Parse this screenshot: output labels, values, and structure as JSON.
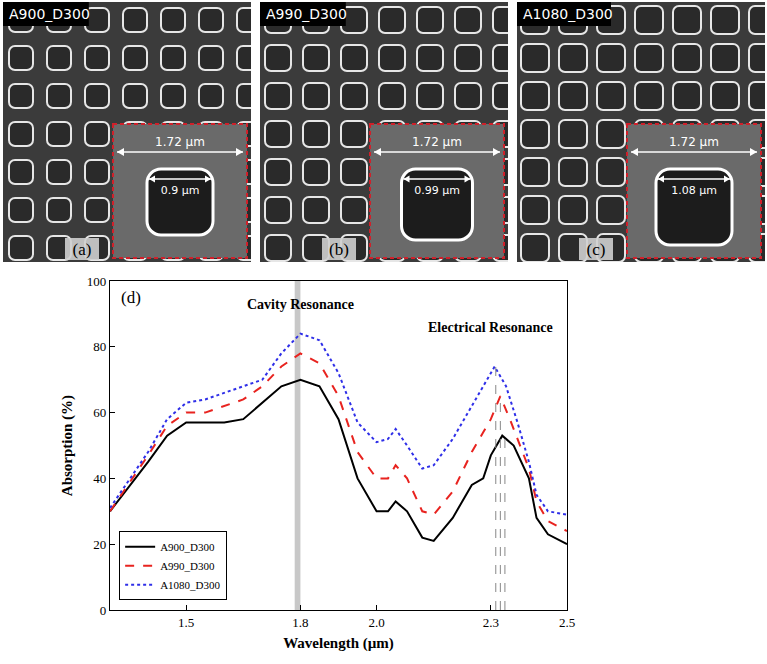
{
  "panels": [
    {
      "letter": "(a)",
      "label": "A900_D300",
      "period": "1.72 µm",
      "size": "0.9 µm"
    },
    {
      "letter": "(b)",
      "label": "A990_D300",
      "period": "1.72 µm",
      "size": "0.99 µm"
    },
    {
      "letter": "(c)",
      "label": "A1080_D300",
      "period": "1.72 µm",
      "size": "1.08 µm"
    }
  ],
  "chart_data": {
    "type": "line",
    "panel_letter": "(d)",
    "x_label": "Wavelength (µm)",
    "y_label": "Absorption (%)",
    "xlim": [
      1.3,
      2.5
    ],
    "xticks": [
      1.5,
      1.8,
      {
        "value": 2,
        "label": "2.0"
      },
      2.3,
      2.5
    ],
    "ylim": [
      0,
      100
    ],
    "yticks": [
      0,
      20,
      40,
      60,
      80,
      100
    ],
    "grid": false,
    "legend": "lower left",
    "annotations": [
      {
        "text": "Cavity Resonance",
        "x": 1.8,
        "y": 93
      },
      {
        "text": "Electrical Resonance",
        "x": 2.3,
        "y": 86
      }
    ],
    "band": {
      "x": [
        1.785,
        1.8
      ]
    },
    "peak_lines": [
      {
        "x": 2.313,
        "y": 74
      },
      {
        "x": 2.325,
        "y": 65
      },
      {
        "x": 2.337,
        "y": 53
      }
    ],
    "series": [
      {
        "name": "A900_D300",
        "color": "#000000",
        "line_style": "solid",
        "x": [
          1.3,
          1.4,
          1.45,
          1.5,
          1.55,
          1.6,
          1.65,
          1.7,
          1.75,
          1.8,
          1.85,
          1.9,
          1.95,
          2.0,
          2.03,
          2.05,
          2.08,
          2.12,
          2.15,
          2.2,
          2.25,
          2.28,
          2.3,
          2.33,
          2.36,
          2.4,
          2.42,
          2.45,
          2.5
        ],
        "values": [
          30,
          45,
          53,
          57,
          57,
          57,
          58,
          63,
          68,
          70,
          68,
          58,
          40,
          30,
          30,
          33,
          30,
          22,
          21,
          28,
          38,
          40,
          47,
          53,
          50,
          40,
          28,
          23,
          20
        ]
      },
      {
        "name": "A990_D300",
        "color": "#e8231f",
        "line_style": "dash",
        "x": [
          1.3,
          1.4,
          1.45,
          1.5,
          1.55,
          1.6,
          1.65,
          1.7,
          1.75,
          1.8,
          1.85,
          1.9,
          1.95,
          2.0,
          2.03,
          2.05,
          2.08,
          2.12,
          2.15,
          2.2,
          2.25,
          2.28,
          2.3,
          2.325,
          2.35,
          2.4,
          2.42,
          2.45,
          2.5
        ],
        "values": [
          30,
          47,
          56,
          60,
          60,
          62,
          64,
          68,
          74,
          78,
          75,
          65,
          48,
          40,
          40,
          44,
          40,
          30,
          29,
          36,
          48,
          54,
          58,
          65,
          58,
          43,
          33,
          27,
          24
        ]
      },
      {
        "name": "A1080_D300",
        "color": "#2f2fe8",
        "line_style": "dot",
        "x": [
          1.3,
          1.4,
          1.45,
          1.5,
          1.55,
          1.6,
          1.65,
          1.7,
          1.75,
          1.8,
          1.85,
          1.9,
          1.95,
          2.0,
          2.03,
          2.05,
          2.08,
          2.12,
          2.15,
          2.2,
          2.25,
          2.28,
          2.31,
          2.34,
          2.37,
          2.4,
          2.42,
          2.45,
          2.5
        ],
        "values": [
          31,
          48,
          58,
          63,
          64,
          66,
          68,
          70,
          78,
          84,
          82,
          72,
          57,
          51,
          52,
          55,
          50,
          43,
          44,
          52,
          62,
          68,
          74,
          68,
          57,
          45,
          35,
          30,
          29
        ]
      }
    ]
  }
}
